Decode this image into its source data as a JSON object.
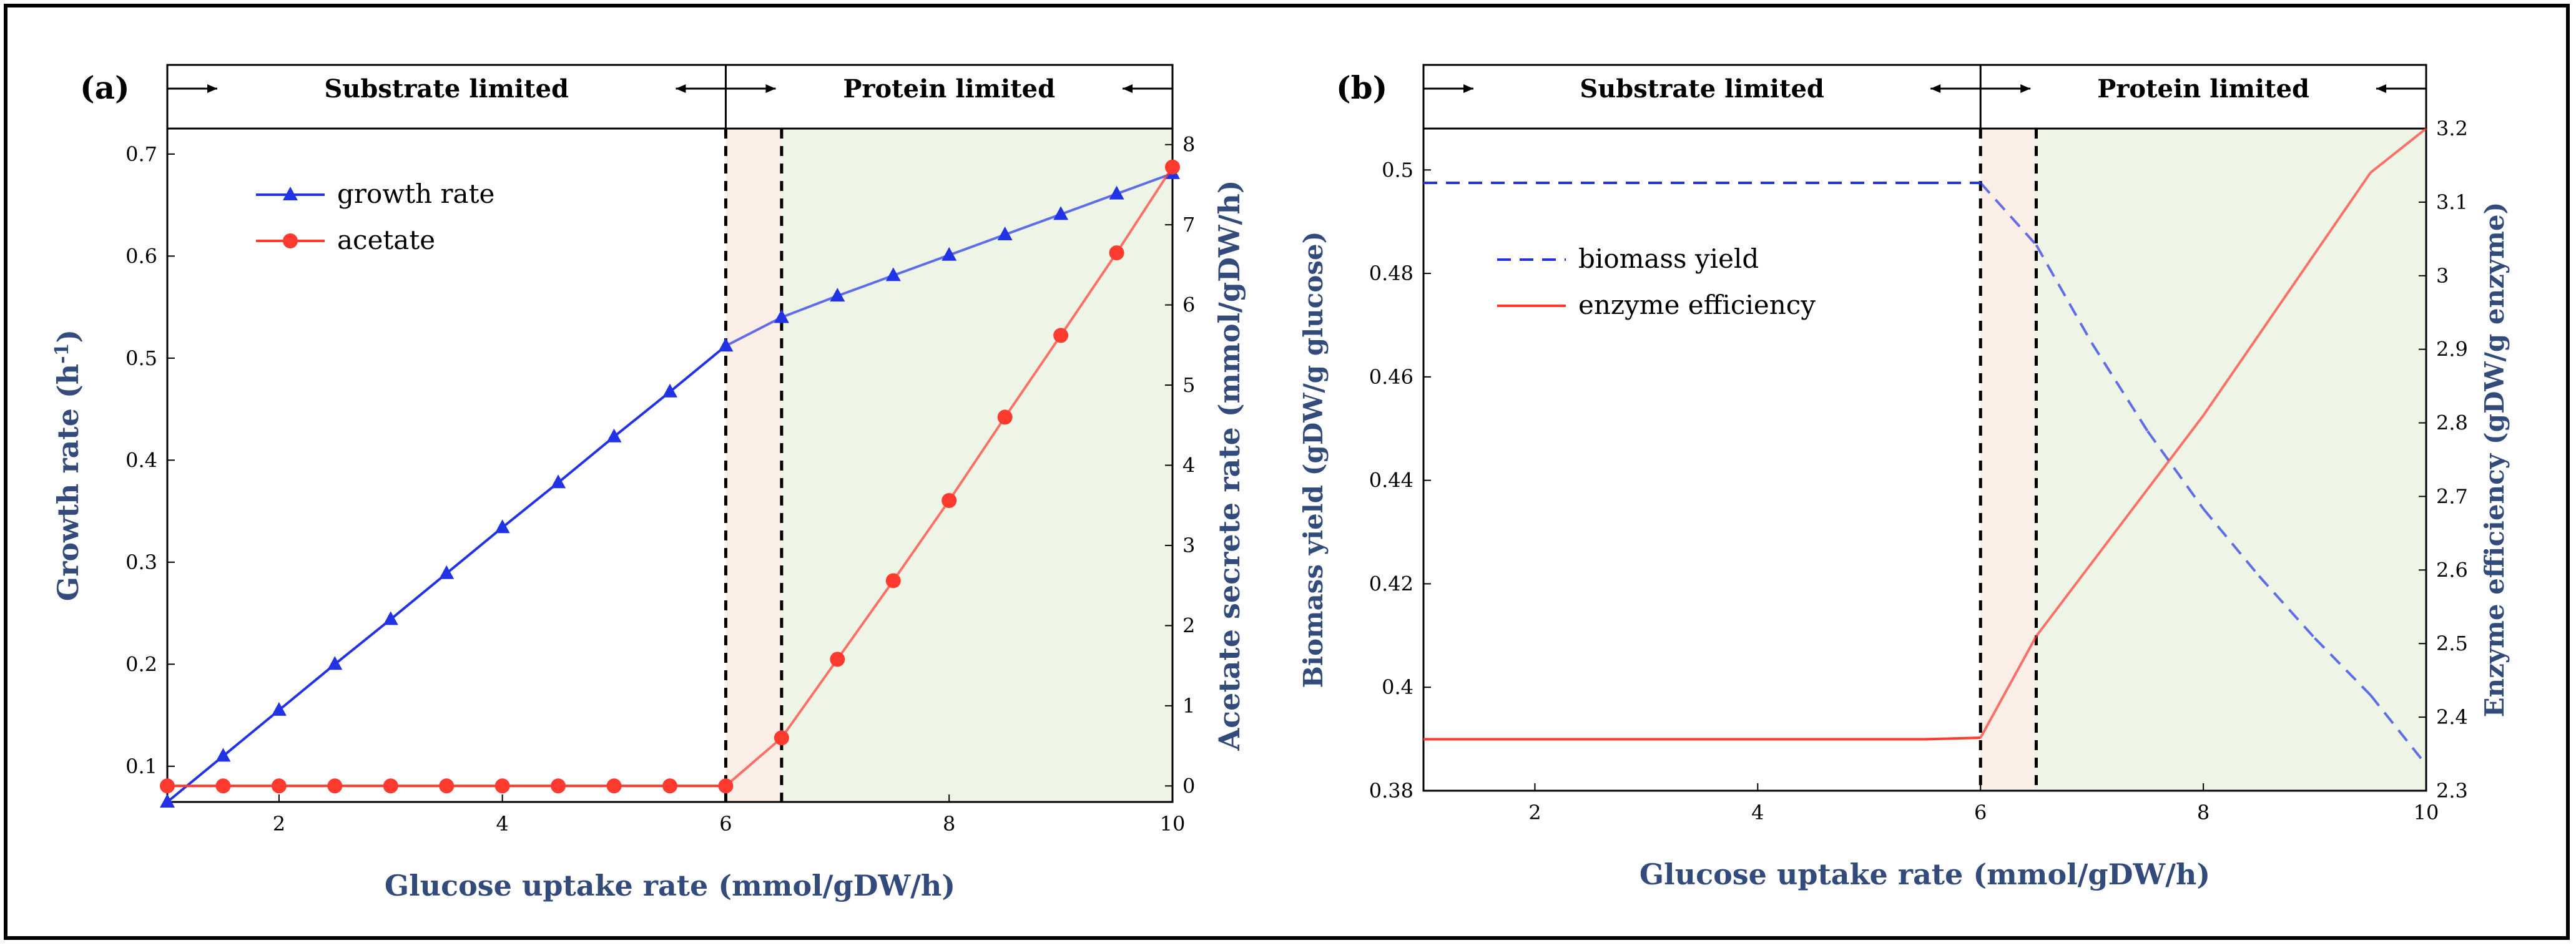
{
  "colors": {
    "blue": "#2233e6",
    "red": "#ff3b30",
    "axis_label": "#334b7a",
    "shade_orange": "#fbeee6",
    "shade_green": "#eef4e6"
  },
  "chart_data": [
    {
      "type": "line",
      "panel_label": "(a)",
      "xlabel": "Glucose uptake rate (mmol/gDW/h)",
      "ylabel": "Growth rate (h",
      "ylabel_sup": "-1",
      "ylabel_close": ")",
      "y2label": "Acetate secrete rate (mmol/gDW/h)",
      "xlim": [
        1,
        10
      ],
      "ylim": [
        0.065,
        0.725
      ],
      "y2lim": [
        -0.2,
        8.2
      ],
      "xticks": [
        "2",
        "4",
        "6",
        "8",
        "10"
      ],
      "yticks": [
        "0.1",
        "0.2",
        "0.3",
        "0.4",
        "0.5",
        "0.6",
        "0.7"
      ],
      "y2ticks": [
        "0",
        "1",
        "2",
        "3",
        "4",
        "5",
        "6",
        "7",
        "8"
      ],
      "regions": {
        "substrate": "Substrate limited",
        "protein": "Protein limited",
        "transition": [
          6,
          6.5
        ]
      },
      "legend": [
        "growth rate",
        "acetate"
      ],
      "series": [
        {
          "name": "growth rate",
          "axis": "left",
          "marker": "triangle",
          "x": [
            1,
            1.5,
            2,
            2.5,
            3,
            3.5,
            4,
            4.5,
            5,
            5.5,
            6,
            6.5,
            7,
            7.5,
            8,
            8.5,
            9,
            9.5,
            10
          ],
          "y": [
            0.065,
            0.11,
            0.155,
            0.2,
            0.244,
            0.289,
            0.334,
            0.378,
            0.423,
            0.467,
            0.512,
            0.54,
            0.561,
            0.581,
            0.601,
            0.621,
            0.641,
            0.661,
            0.681
          ]
        },
        {
          "name": "acetate",
          "axis": "right",
          "marker": "circle",
          "x": [
            1,
            1.5,
            2,
            2.5,
            3,
            3.5,
            4,
            4.5,
            5,
            5.5,
            6,
            6.5,
            7,
            7.5,
            8,
            8.5,
            9,
            9.5,
            10
          ],
          "y": [
            0,
            0,
            0,
            0,
            0,
            0,
            0,
            0,
            0,
            0,
            0,
            0.6,
            1.58,
            2.56,
            3.56,
            4.6,
            5.62,
            6.65,
            7.72
          ]
        }
      ]
    },
    {
      "type": "line",
      "panel_label": "(b)",
      "xlabel": "Glucose uptake rate (mmol/gDW/h)",
      "ylabel": "Biomass yield (gDW/g glucose)",
      "y2label": "Enzyme efficiency (gDW/g enzyme)",
      "xlim": [
        1,
        10
      ],
      "ylim": [
        0.38,
        0.508
      ],
      "y2lim": [
        2.3,
        3.2
      ],
      "xticks": [
        "2",
        "4",
        "6",
        "8",
        "10"
      ],
      "yticks": [
        "0.38",
        "0.4",
        "0.42",
        "0.44",
        "0.46",
        "0.48",
        "0.5"
      ],
      "y2ticks": [
        "2.3",
        "2.4",
        "2.5",
        "2.6",
        "2.7",
        "2.8",
        "2.9",
        "3",
        "3.1",
        "3.2"
      ],
      "regions": {
        "substrate": "Substrate limited",
        "protein": "Protein limited",
        "transition": [
          6,
          6.5
        ]
      },
      "legend": [
        "biomass yield",
        "enzyme efficiency"
      ],
      "series": [
        {
          "name": "biomass yield",
          "axis": "left",
          "style": "dashed",
          "x": [
            1,
            5.5,
            6,
            6.5,
            7,
            7.5,
            8,
            8.5,
            9,
            9.5,
            10
          ],
          "y": [
            0.4975,
            0.4975,
            0.4975,
            0.4855,
            0.4665,
            0.4495,
            0.4345,
            0.4215,
            0.4095,
            0.3985,
            0.385
          ]
        },
        {
          "name": "enzyme efficiency",
          "axis": "right",
          "style": "solid",
          "x": [
            1,
            5.5,
            6,
            6.5,
            7,
            7.5,
            8,
            8.5,
            9,
            9.5,
            10
          ],
          "y": [
            2.37,
            2.37,
            2.372,
            2.51,
            2.61,
            2.71,
            2.81,
            2.92,
            3.03,
            3.14,
            3.2
          ]
        }
      ]
    }
  ]
}
